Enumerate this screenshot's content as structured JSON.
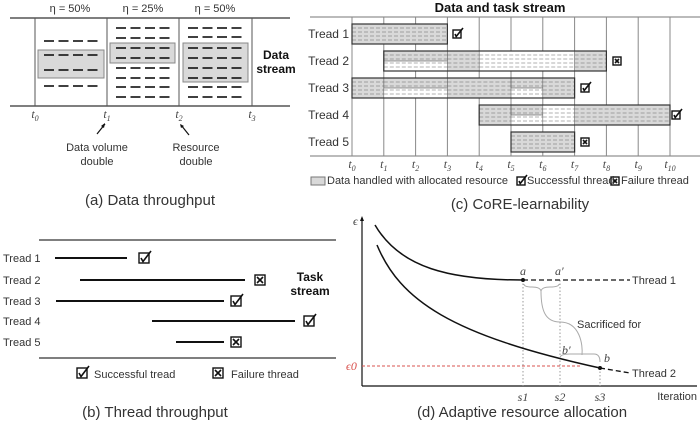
{
  "panel_a": {
    "efficiency_labels": [
      "η = 50%",
      "η = 25%",
      "η = 50%"
    ],
    "stream_label": [
      "Data",
      "stream"
    ],
    "time_labels": [
      "0",
      "1",
      "2",
      "3"
    ],
    "time_symbol": "t",
    "annotation_1": [
      "Data volume",
      "double"
    ],
    "annotation_2": [
      "Resource",
      "double"
    ],
    "caption": "(a) Data throughput"
  },
  "panel_b": {
    "threads": [
      {
        "label": "Tread 1",
        "outcome": "success"
      },
      {
        "label": "Tread 2",
        "outcome": "failure"
      },
      {
        "label": "Tread 3",
        "outcome": "success"
      },
      {
        "label": "Tread 4",
        "outcome": "success"
      },
      {
        "label": "Tread 5",
        "outcome": "failure"
      }
    ],
    "stream_label": [
      "Task",
      "stream"
    ],
    "legend_success": "Successful tread",
    "legend_failure": "Failure thread",
    "caption": "(b) Thread throughput"
  },
  "panel_c": {
    "title": "Data and task stream",
    "threads": [
      {
        "label": "Tread 1",
        "outcome": "success"
      },
      {
        "label": "Tread 2",
        "outcome": "failure"
      },
      {
        "label": "Tread 3",
        "outcome": "success"
      },
      {
        "label": "Tread 4",
        "outcome": "success"
      },
      {
        "label": "Tread 5",
        "outcome": "failure"
      }
    ],
    "time_symbol": "t",
    "time_labels": [
      "0",
      "1",
      "2",
      "3",
      "4",
      "5",
      "6",
      "7",
      "8",
      "9",
      "10"
    ],
    "legend_data": "Data handled with allocated resource",
    "legend_success": "Successful thread",
    "legend_failure": "Failure thread",
    "caption": "(c) CoRE-learnability",
    "colors": {
      "allocated": "#d9d9d9"
    }
  },
  "panel_d": {
    "y_axis_label": "ϵ",
    "x_axis_label": "Iteration",
    "threshold_label": "ϵ0",
    "point_labels": [
      "a",
      "a′",
      "b′",
      "b"
    ],
    "step_labels": [
      "s1",
      "s2",
      "s3"
    ],
    "thread_1_label": "Thread 1",
    "thread_2_label": "Thread 2",
    "sacrifice_label": "Sacrificed for",
    "caption": "(d) Adaptive resource allocation",
    "colors": {
      "threshold": "#d9534f"
    }
  }
}
